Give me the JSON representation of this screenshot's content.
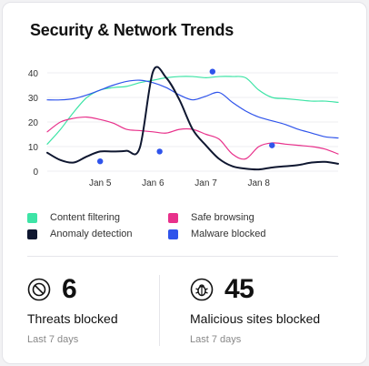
{
  "card": {
    "title": "Security & Network Trends"
  },
  "chart_data": {
    "type": "line",
    "x": [
      0,
      1,
      2,
      3,
      4,
      5,
      6,
      7,
      8,
      9,
      10,
      11,
      12,
      13,
      14,
      15,
      16,
      17,
      18,
      19,
      20,
      21,
      22
    ],
    "tick_labels": [
      {
        "x": 4,
        "label": "Jan 5"
      },
      {
        "x": 8,
        "label": "Jan 6"
      },
      {
        "x": 12,
        "label": "Jan 7"
      },
      {
        "x": 16,
        "label": "Jan 8"
      }
    ],
    "ylim": [
      0,
      40
    ],
    "yticks": [
      0,
      10,
      20,
      30,
      40
    ],
    "grid": true,
    "series": [
      {
        "name": "Content filtering",
        "color": "#3ee4a6",
        "values": [
          11,
          17,
          24,
          30,
          33,
          34,
          34.5,
          36,
          37,
          38,
          38.5,
          38.5,
          38,
          38.5,
          38.5,
          38,
          33,
          30,
          29.5,
          29,
          28.5,
          28.5,
          28
        ]
      },
      {
        "name": "Malware blocked",
        "color": "#2f54eb",
        "values": [
          29,
          29,
          29.5,
          31,
          33,
          35,
          36.5,
          37,
          36,
          34,
          31,
          29,
          30.5,
          32,
          28,
          24.5,
          22,
          20.5,
          19,
          17,
          15.5,
          14,
          13.5
        ]
      },
      {
        "name": "Safe browsing",
        "color": "#e8318b",
        "values": [
          16,
          20,
          21.5,
          22,
          21,
          19.5,
          17,
          16.5,
          16,
          15.5,
          17,
          17,
          15,
          13,
          7,
          5,
          10,
          11.5,
          11,
          10.5,
          10,
          9,
          7
        ]
      },
      {
        "name": "Anomaly detection",
        "color": "#0f1730",
        "values": [
          7.5,
          4.5,
          3.5,
          6,
          8,
          8,
          8.3,
          9.5,
          40.5,
          38,
          29,
          17,
          10.5,
          5,
          2,
          1,
          0.7,
          1.5,
          2,
          2.5,
          3.5,
          3.8,
          3
        ]
      }
    ],
    "markers": [
      {
        "series": "Anomaly detection",
        "x": 4,
        "y": 4
      },
      {
        "series": "Anomaly detection",
        "x": 8.5,
        "y": 8
      },
      {
        "series": "Anomaly detection",
        "x": 12.5,
        "y": 40.5
      },
      {
        "series": "Anomaly detection",
        "x": 17,
        "y": 10.5
      }
    ]
  },
  "legend": [
    {
      "label": "Content filtering",
      "color": "#3ee4a6"
    },
    {
      "label": "Safe browsing",
      "color": "#e8318b"
    },
    {
      "label": "Anomaly detection",
      "color": "#0f1730"
    },
    {
      "label": "Malware blocked",
      "color": "#2f54eb"
    }
  ],
  "stats": {
    "threats": {
      "value": "6",
      "label": "Threats blocked",
      "period": "Last 7 days",
      "icon": "block-icon"
    },
    "malicious": {
      "value": "45",
      "label": "Malicious sites blocked",
      "period": "Last 7 days",
      "icon": "bug-icon"
    }
  }
}
